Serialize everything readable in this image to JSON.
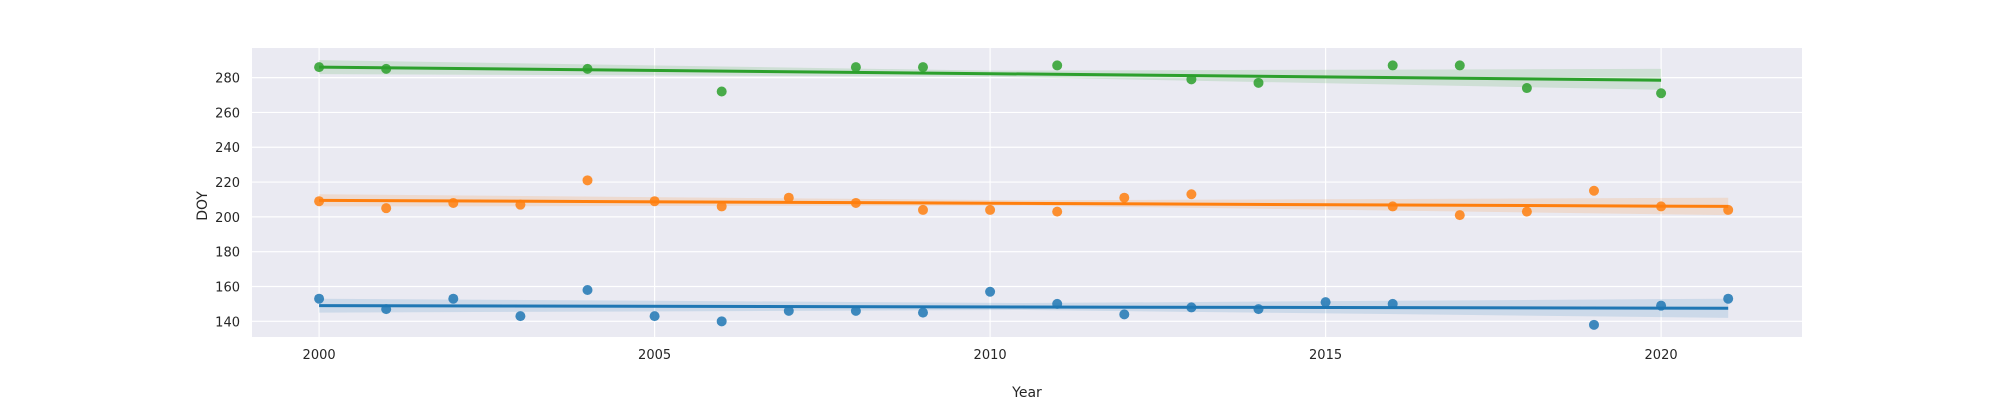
{
  "chart_data": {
    "type": "scatter",
    "xlabel": "Year",
    "ylabel": "DOY",
    "xlim": [
      1999,
      2022.1
    ],
    "ylim": [
      131,
      297
    ],
    "x_ticks": [
      2000,
      2005,
      2010,
      2015,
      2020
    ],
    "y_ticks": [
      140,
      160,
      180,
      200,
      220,
      240,
      260,
      280
    ],
    "grid": true,
    "background_color": "#eaeaf2",
    "series": [
      {
        "color": "#1f77b4",
        "points": [
          [
            2000,
            153
          ],
          [
            2001,
            147
          ],
          [
            2002,
            153
          ],
          [
            2003,
            143
          ],
          [
            2004,
            158
          ],
          [
            2005,
            143
          ],
          [
            2006,
            140
          ],
          [
            2007,
            146
          ],
          [
            2008,
            146
          ],
          [
            2009,
            145
          ],
          [
            2010,
            157
          ],
          [
            2011,
            150
          ],
          [
            2012,
            144
          ],
          [
            2013,
            148
          ],
          [
            2014,
            147
          ],
          [
            2015,
            151
          ],
          [
            2016,
            150
          ],
          [
            2019,
            138
          ],
          [
            2020,
            149
          ],
          [
            2021,
            153
          ]
        ],
        "trend": {
          "x": [
            2000,
            2021
          ],
          "y": [
            149,
            147.5
          ]
        },
        "ci_upper": [
          153,
          150.5,
          153
        ],
        "ci_lower": [
          145,
          146.5,
          142
        ]
      },
      {
        "color": "#ff7f0e",
        "points": [
          [
            2000,
            209
          ],
          [
            2001,
            205
          ],
          [
            2002,
            208
          ],
          [
            2003,
            207
          ],
          [
            2004,
            221
          ],
          [
            2005,
            209
          ],
          [
            2006,
            206
          ],
          [
            2007,
            211
          ],
          [
            2008,
            208
          ],
          [
            2009,
            204
          ],
          [
            2010,
            204
          ],
          [
            2011,
            203
          ],
          [
            2012,
            211
          ],
          [
            2013,
            213
          ],
          [
            2016,
            206
          ],
          [
            2017,
            201
          ],
          [
            2018,
            203
          ],
          [
            2019,
            215
          ],
          [
            2020,
            206
          ],
          [
            2021,
            204
          ]
        ],
        "trend": {
          "x": [
            2000,
            2021
          ],
          "y": [
            209.5,
            206
          ]
        },
        "ci_upper": [
          213,
          209.5,
          211
        ],
        "ci_lower": [
          206,
          206.5,
          201
        ]
      },
      {
        "color": "#2ca02c",
        "points": [
          [
            2000,
            286
          ],
          [
            2001,
            285
          ],
          [
            2004,
            285
          ],
          [
            2006,
            272
          ],
          [
            2008,
            286
          ],
          [
            2009,
            286
          ],
          [
            2011,
            287
          ],
          [
            2013,
            279
          ],
          [
            2014,
            277
          ],
          [
            2016,
            287
          ],
          [
            2017,
            287
          ],
          [
            2018,
            274
          ],
          [
            2020,
            271
          ]
        ],
        "trend": {
          "x": [
            2000,
            2020
          ],
          "y": [
            286,
            278.5
          ]
        },
        "ci_upper": [
          290,
          284,
          285
        ],
        "ci_lower": [
          282,
          280.5,
          273
        ]
      }
    ]
  }
}
